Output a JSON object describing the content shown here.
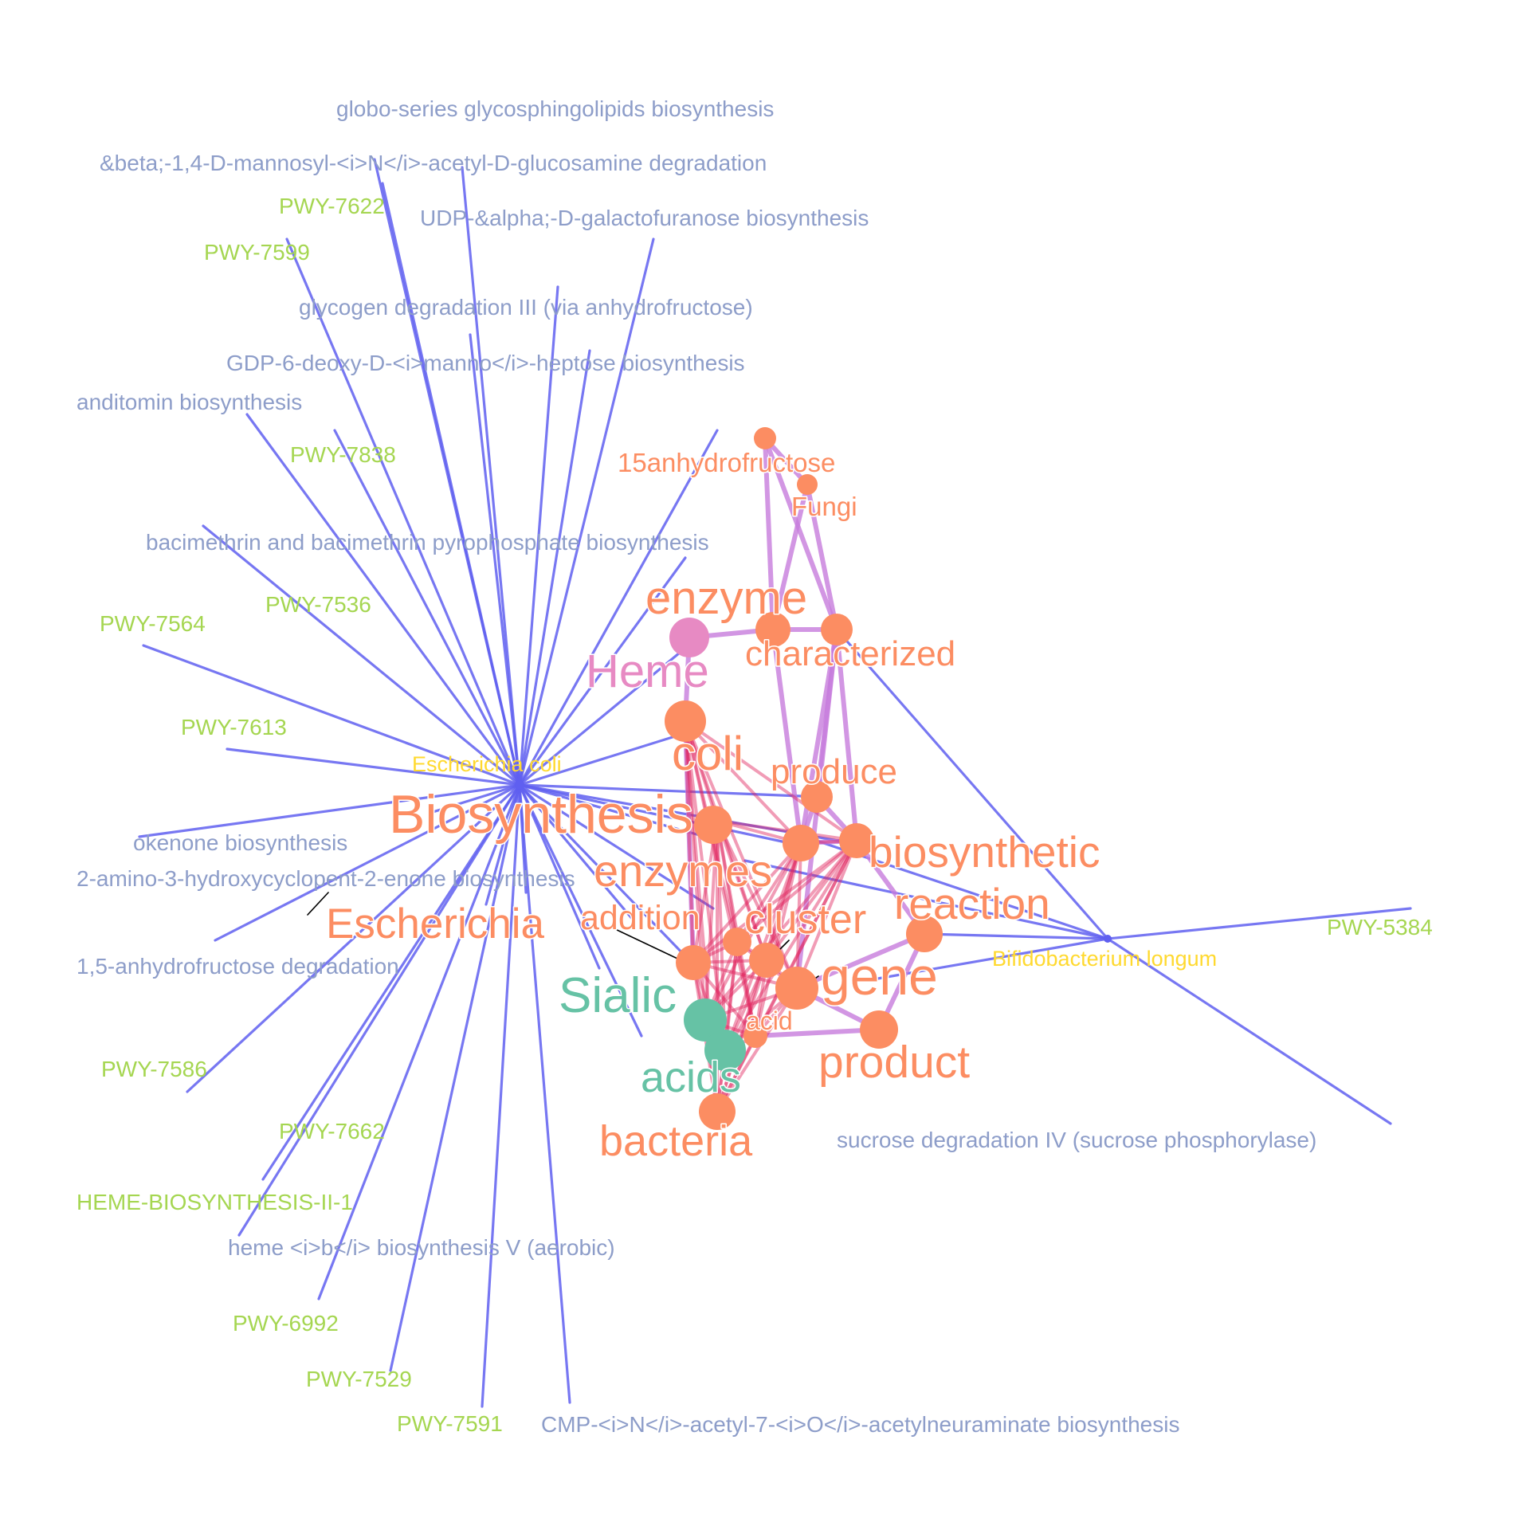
{
  "graph": {
    "colors": {
      "pathway_name": "#8d9dc9",
      "pathway_id": "#a5d651",
      "species": "#ffd92f",
      "word": "#fc8d62",
      "word_heme": "#e78ac3",
      "word_sialic": "#66c2a5",
      "edge_species": "#5f5ff0",
      "edge_word": "#c77cdc",
      "edge_word_strong": "#e0245e"
    },
    "pathway_names": [
      "globo-series glycosphingolipids biosynthesis",
      "&beta;-1,4-D-mannosyl-<i>N</i>-acetyl-D-glucosamine degradation",
      "UDP-&alpha;-D-galactofuranose biosynthesis",
      "glycogen degradation III (via anhydrofructose)",
      "GDP-6-deoxy-D-<i>manno</i>-heptose biosynthesis",
      "anditomin biosynthesis",
      "bacimethrin and bacimethrin pyrophosphate biosynthesis",
      "okenone biosynthesis",
      "2-amino-3-hydroxycyclopent-2-enone biosynthesis",
      "1,5-anhydrofructose degradation",
      "heme <i>b</i> biosynthesis V (aerobic)",
      "CMP-<i>N</i>-acetyl-7-<i>O</i>-acetylneuraminate biosynthesis",
      "sucrose degradation IV (sucrose phosphorylase)"
    ],
    "pathway_ids": [
      "PWY-7622",
      "PWY-7599",
      "PWY-7838",
      "PWY-7536",
      "PWY-7564",
      "PWY-7613",
      "PWY-7586",
      "PWY-7662",
      "HEME-BIOSYNTHESIS-II-1",
      "PWY-6992",
      "PWY-7529",
      "PWY-7591",
      "PWY-5384"
    ],
    "species": [
      "Escherichia coli",
      "Bifidobacterium longum"
    ],
    "words": [
      "15anhydrofructose",
      "Fungi",
      "enzyme",
      "Heme",
      "characterized",
      "coli",
      "produce",
      "Biosynthesis",
      "biosynthetic",
      "enzymes",
      "reaction",
      "Escherichia",
      "addition",
      "cluster",
      "gene",
      "Sialic",
      "acid",
      "product",
      "acids",
      "bacteria"
    ]
  }
}
